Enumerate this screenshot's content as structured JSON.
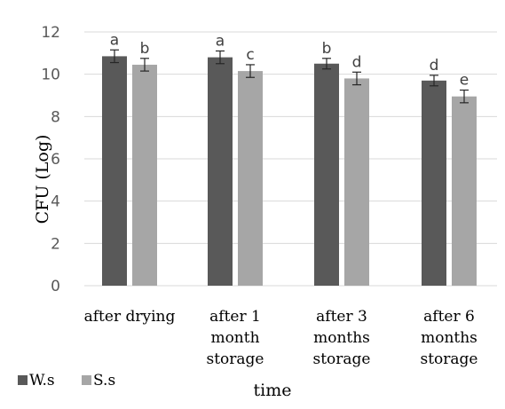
{
  "chart_data": {
    "type": "bar",
    "categories": [
      [
        "after drying"
      ],
      [
        "after 1",
        "month",
        "storage"
      ],
      [
        "after 3",
        "months",
        "storage"
      ],
      [
        "after 6",
        "months",
        "storage"
      ]
    ],
    "series": [
      {
        "name": "W.s",
        "color": "#595959",
        "values": [
          10.85,
          10.8,
          10.5,
          9.7
        ],
        "errors": [
          0.3,
          0.3,
          0.25,
          0.25
        ],
        "letters": [
          "a",
          "a",
          "b",
          "d"
        ]
      },
      {
        "name": "S.s",
        "color": "#a6a6a6",
        "values": [
          10.45,
          10.15,
          9.8,
          8.95
        ],
        "errors": [
          0.3,
          0.3,
          0.3,
          0.3
        ],
        "letters": [
          "b",
          "c",
          "d",
          "e"
        ]
      }
    ],
    "ylabel": "CFU (Log)",
    "xlabel": "time",
    "ylim": [
      0,
      12
    ],
    "yticks": [
      0,
      2,
      4,
      6,
      8,
      10,
      12
    ],
    "grid": true,
    "legend": "bottom-left"
  }
}
